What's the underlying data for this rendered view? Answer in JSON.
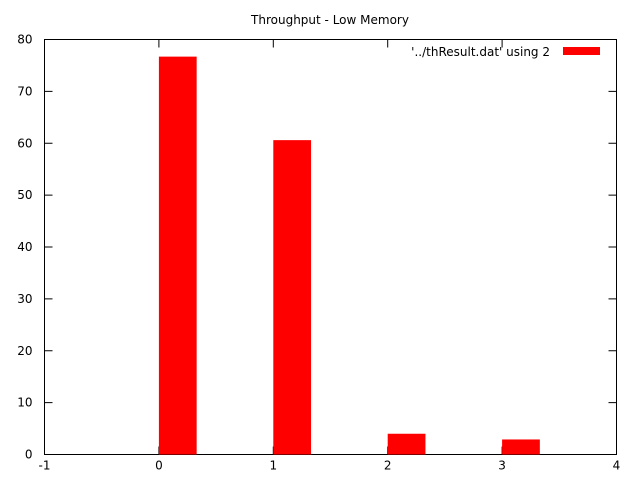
{
  "chart_data": {
    "type": "bar",
    "title": "Throughput - Low Memory",
    "xlabel": "",
    "ylabel": "",
    "xlim": [
      -1,
      4
    ],
    "ylim": [
      0,
      80
    ],
    "xticks": [
      -1,
      0,
      1,
      2,
      3,
      4
    ],
    "yticks": [
      0,
      10,
      20,
      30,
      40,
      50,
      60,
      70,
      80
    ],
    "bar_width": 0.33,
    "legend_position": "top-right",
    "grid": false,
    "series": [
      {
        "name": "'../thResult.dat' using 2",
        "color": "#ff0000",
        "points": [
          {
            "x": 0,
            "y": 76.7
          },
          {
            "x": 1,
            "y": 60.6
          },
          {
            "x": 2,
            "y": 4.0
          },
          {
            "x": 3,
            "y": 2.9
          }
        ]
      }
    ]
  }
}
